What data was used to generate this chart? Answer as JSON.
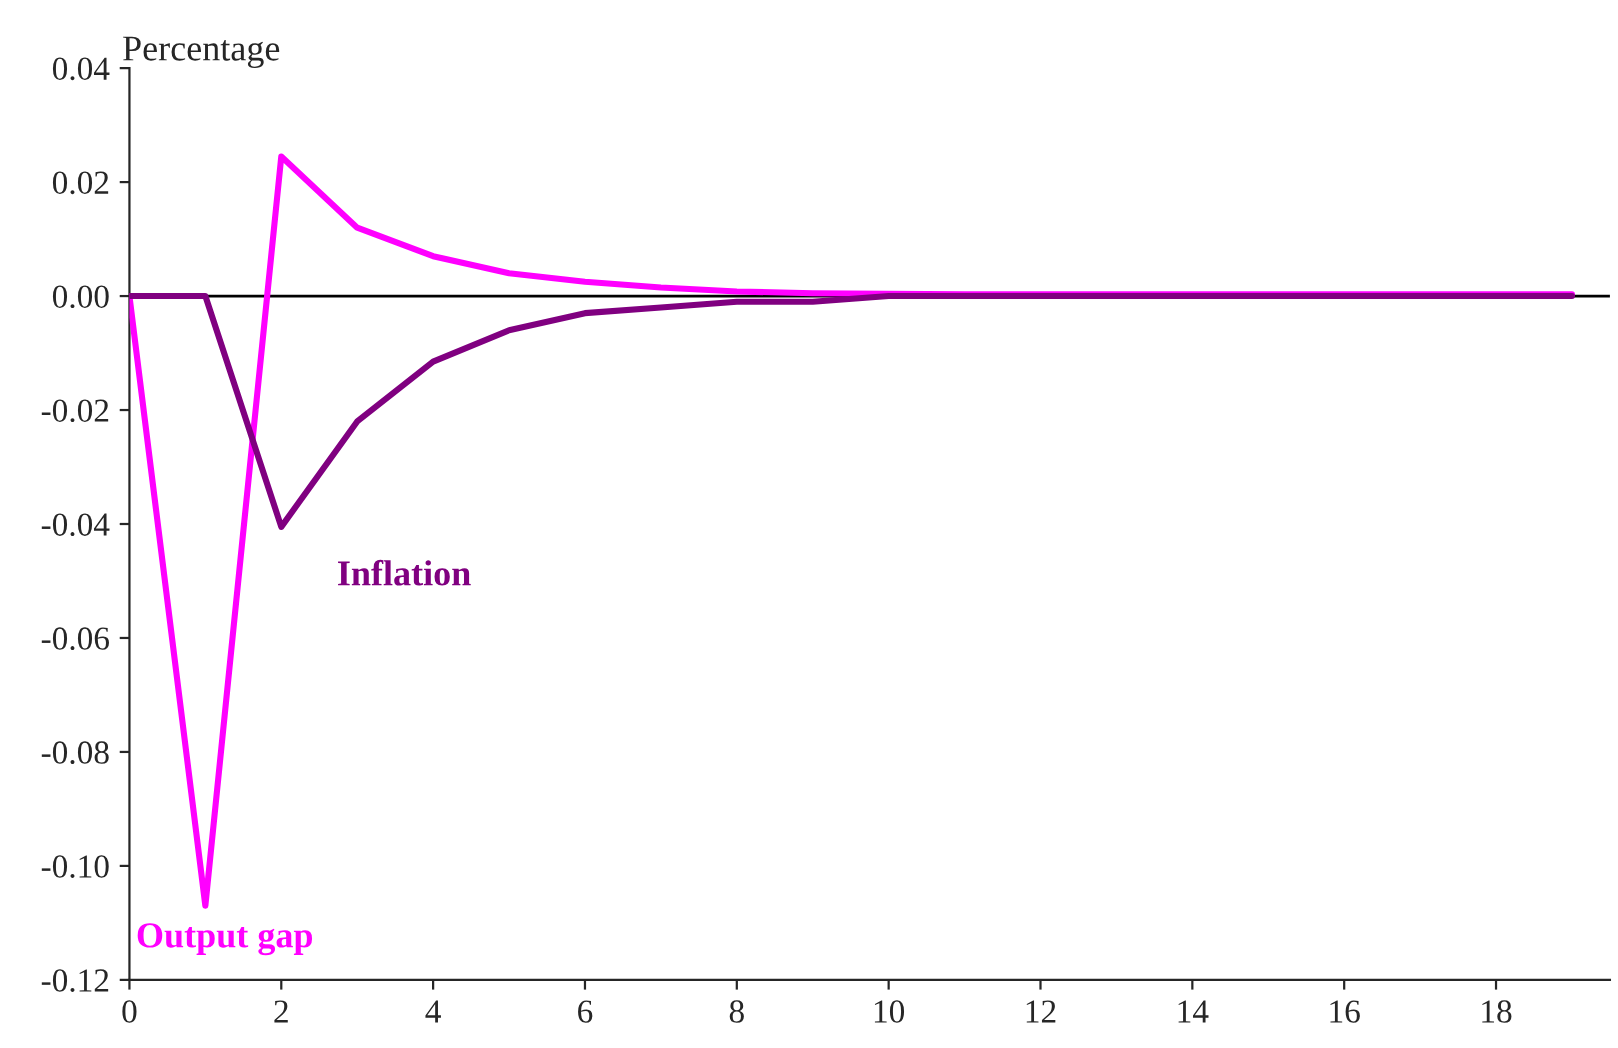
{
  "chart_data": {
    "type": "line",
    "ylabel": "Percentage",
    "x": [
      0,
      1,
      2,
      3,
      4,
      5,
      6,
      7,
      8,
      9,
      10,
      11,
      12,
      13,
      14,
      15,
      16,
      17,
      18,
      19
    ],
    "series": [
      {
        "name": "Output gap",
        "color": "#ff00ff",
        "values": [
          0,
          -0.107,
          0.0245,
          0.012,
          0.007,
          0.004,
          0.0025,
          0.0015,
          0.0008,
          0.0005,
          0.0004,
          0.0003,
          0.0003,
          0.0003,
          0.0003,
          0.0003,
          0.0003,
          0.0003,
          0.0003,
          0.0003
        ]
      },
      {
        "name": "Inflation",
        "color": "#800080",
        "values": [
          0,
          0,
          -0.0405,
          -0.022,
          -0.0115,
          -0.006,
          -0.003,
          -0.002,
          -0.001,
          -0.001,
          0,
          0,
          0,
          0,
          0,
          0,
          0,
          0,
          0,
          0
        ]
      }
    ],
    "xlim": [
      0,
      19.5
    ],
    "xticks": [
      0,
      2,
      4,
      6,
      8,
      10,
      12,
      14,
      16,
      18
    ],
    "ylim": [
      -0.12,
      0.04
    ],
    "yticks": [
      0.04,
      0.02,
      {
        "value": 0,
        "label": "0.00"
      },
      -0.02,
      -0.04,
      -0.06,
      -0.08,
      {
        "value": -0.1,
        "label": "-0.10"
      },
      -0.12
    ],
    "ref_lines": [
      {
        "axis": "y",
        "value": 0,
        "color": "#000000"
      }
    ],
    "grid": false,
    "legend": false,
    "marker": "none",
    "line_style": "solid"
  }
}
